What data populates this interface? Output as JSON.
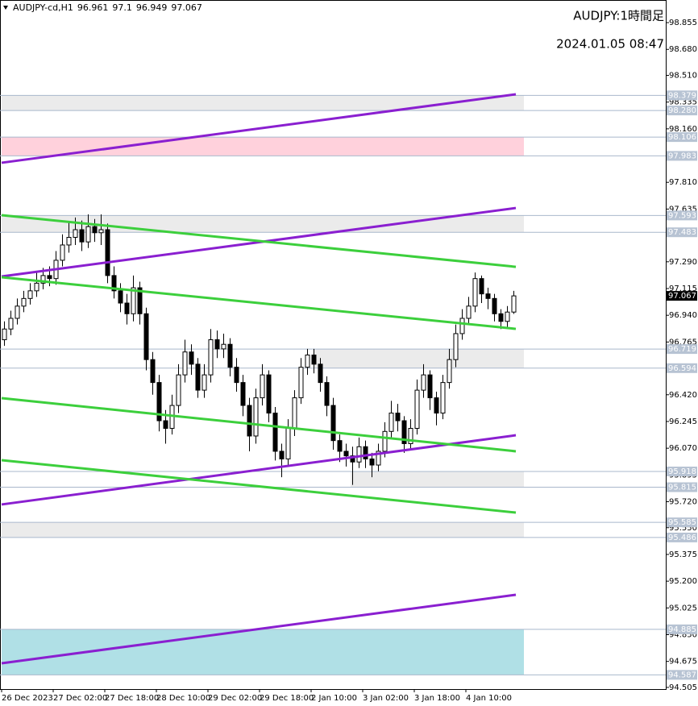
{
  "chart_data": {
    "type": "candlestick",
    "symbol": "AUDJPY-cd,H1",
    "title": "AUDJPY:1時間足",
    "subtitle": "2024.01.05 08:47",
    "up_color": "#ffffff",
    "down_color": "#000000",
    "categories": [
      "26 Dec 2023",
      null,
      null,
      null,
      null,
      null,
      null,
      null,
      "27 Dec 02:00",
      null,
      null,
      null,
      null,
      null,
      null,
      null,
      "27 Dec 18:00",
      null,
      null,
      null,
      null,
      null,
      null,
      null,
      "28 Dec 10:00",
      null,
      null,
      null,
      null,
      null,
      null,
      null,
      "29 Dec 02:00",
      null,
      null,
      null,
      null,
      null,
      null,
      null,
      "29 Dec 18:00",
      null,
      null,
      null,
      null,
      null,
      null,
      null,
      "2 Jan 10:00",
      null,
      null,
      null,
      null,
      null,
      null,
      null,
      "3 Jan 02:00",
      null,
      null,
      null,
      null,
      null,
      null,
      null,
      "3 Jan 18:00",
      null,
      null,
      null,
      null,
      null,
      null,
      null,
      "4 Jan 10:00",
      null,
      null,
      null,
      null,
      null,
      null,
      null
    ],
    "candles": [
      [
        96.78,
        96.9,
        96.74,
        96.85
      ],
      [
        96.85,
        96.97,
        96.81,
        96.92
      ],
      [
        96.92,
        97.05,
        96.88,
        97.0
      ],
      [
        97.0,
        97.1,
        96.96,
        97.05
      ],
      [
        97.05,
        97.15,
        97.01,
        97.1
      ],
      [
        97.1,
        97.22,
        97.06,
        97.15
      ],
      [
        97.15,
        97.25,
        97.11,
        97.2
      ],
      [
        97.2,
        97.26,
        97.13,
        97.18
      ],
      [
        97.18,
        97.36,
        97.14,
        97.3
      ],
      [
        97.3,
        97.47,
        97.26,
        97.4
      ],
      [
        97.4,
        97.55,
        97.35,
        97.45
      ],
      [
        97.45,
        97.58,
        97.4,
        97.5
      ],
      [
        97.5,
        97.56,
        97.36,
        97.42
      ],
      [
        97.42,
        97.6,
        97.38,
        97.52
      ],
      [
        97.52,
        97.57,
        97.42,
        97.48
      ],
      [
        97.48,
        97.6,
        97.4,
        97.5
      ],
      [
        97.5,
        97.54,
        97.15,
        97.2
      ],
      [
        97.2,
        97.26,
        97.05,
        97.1
      ],
      [
        97.1,
        97.15,
        96.96,
        97.02
      ],
      [
        97.02,
        97.08,
        96.88,
        96.95
      ],
      [
        96.95,
        97.2,
        96.9,
        97.12
      ],
      [
        97.12,
        97.16,
        96.88,
        96.95
      ],
      [
        96.95,
        96.99,
        96.58,
        96.65
      ],
      [
        96.65,
        96.7,
        96.42,
        96.5
      ],
      [
        96.5,
        96.55,
        96.18,
        96.25
      ],
      [
        96.25,
        96.32,
        96.1,
        96.2
      ],
      [
        96.2,
        96.42,
        96.16,
        96.35
      ],
      [
        96.35,
        96.62,
        96.3,
        96.55
      ],
      [
        96.55,
        96.78,
        96.5,
        96.7
      ],
      [
        96.7,
        96.75,
        96.55,
        96.62
      ],
      [
        96.62,
        96.66,
        96.4,
        96.45
      ],
      [
        96.45,
        96.62,
        96.4,
        96.55
      ],
      [
        96.55,
        96.85,
        96.5,
        96.78
      ],
      [
        96.78,
        96.84,
        96.66,
        96.72
      ],
      [
        96.72,
        96.82,
        96.66,
        96.75
      ],
      [
        96.75,
        96.79,
        96.54,
        96.6
      ],
      [
        96.6,
        96.66,
        96.44,
        96.5
      ],
      [
        96.5,
        96.55,
        96.28,
        96.35
      ],
      [
        96.35,
        96.4,
        96.05,
        96.15
      ],
      [
        96.15,
        96.46,
        96.1,
        96.4
      ],
      [
        96.4,
        96.62,
        96.35,
        96.55
      ],
      [
        96.55,
        96.58,
        96.24,
        96.3
      ],
      [
        96.3,
        96.34,
        95.99,
        96.05
      ],
      [
        96.05,
        96.1,
        95.88,
        96.0
      ],
      [
        96.0,
        96.26,
        95.96,
        96.2
      ],
      [
        96.2,
        96.45,
        96.15,
        96.4
      ],
      [
        96.4,
        96.66,
        96.36,
        96.6
      ],
      [
        96.6,
        96.72,
        96.55,
        96.68
      ],
      [
        96.68,
        96.72,
        96.56,
        96.62
      ],
      [
        96.62,
        96.66,
        96.44,
        96.5
      ],
      [
        96.5,
        96.54,
        96.28,
        96.35
      ],
      [
        96.35,
        96.4,
        96.06,
        96.12
      ],
      [
        96.12,
        96.16,
        95.98,
        96.05
      ],
      [
        96.05,
        96.1,
        95.95,
        96.02
      ],
      [
        96.02,
        96.08,
        95.83,
        95.98
      ],
      [
        95.98,
        96.14,
        95.94,
        96.08
      ],
      [
        96.08,
        96.12,
        95.94,
        96.0
      ],
      [
        96.0,
        96.04,
        95.88,
        95.96
      ],
      [
        95.96,
        96.1,
        95.92,
        96.05
      ],
      [
        96.05,
        96.24,
        96.01,
        96.18
      ],
      [
        96.18,
        96.38,
        96.14,
        96.3
      ],
      [
        96.3,
        96.36,
        96.18,
        96.25
      ],
      [
        96.25,
        96.28,
        96.04,
        96.1
      ],
      [
        96.1,
        96.26,
        96.06,
        96.2
      ],
      [
        96.2,
        96.52,
        96.16,
        96.45
      ],
      [
        96.45,
        96.62,
        96.4,
        96.55
      ],
      [
        96.55,
        96.58,
        96.32,
        96.4
      ],
      [
        96.4,
        96.44,
        96.22,
        96.3
      ],
      [
        96.3,
        96.55,
        96.26,
        96.5
      ],
      [
        96.5,
        96.72,
        96.46,
        96.65
      ],
      [
        96.65,
        96.88,
        96.6,
        96.82
      ],
      [
        96.82,
        96.98,
        96.78,
        96.92
      ],
      [
        96.92,
        97.06,
        96.88,
        97.0
      ],
      [
        97.0,
        97.22,
        96.96,
        97.18
      ],
      [
        97.18,
        97.2,
        97.02,
        97.08
      ],
      [
        97.08,
        97.12,
        96.98,
        97.05
      ],
      [
        97.05,
        97.08,
        96.9,
        96.95
      ],
      [
        96.95,
        96.98,
        96.85,
        96.9
      ],
      [
        96.9,
        97.0,
        96.86,
        96.961
      ],
      [
        96.961,
        97.1,
        96.949,
        97.067
      ]
    ],
    "ylim": [
      94.494,
      99.003
    ],
    "yticks": [
      98.855,
      {
        "value": 98.68,
        "label": "98.680"
      },
      {
        "value": 98.51,
        "label": "98.510"
      },
      98.335,
      {
        "value": 98.16,
        "label": "98.160"
      },
      {
        "value": 97.81,
        "label": "97.810"
      },
      97.635,
      {
        "value": 97.29,
        "label": "97.290"
      },
      97.115,
      {
        "value": 96.94,
        "label": "96.940"
      },
      96.765,
      {
        "value": 96.42,
        "label": "96.420"
      },
      96.245,
      {
        "value": 96.07,
        "label": "96.070"
      },
      95.895,
      {
        "value": 95.72,
        "label": "95.720"
      },
      {
        "value": 95.55,
        "label": "95.550"
      },
      95.375,
      {
        "value": 95.2,
        "label": "95.200"
      },
      95.025,
      {
        "value": 94.85,
        "label": "94.850"
      },
      94.675,
      94.505
    ],
    "zones": [
      {
        "top": 98.379,
        "bottom": 98.28,
        "bottom_label": "98.280",
        "color": "#ebebeb"
      },
      {
        "top": 98.106,
        "bottom": 97.983,
        "color": "#ffd1dc"
      },
      {
        "top": 97.593,
        "bottom": 97.483,
        "color": "#ebebeb"
      },
      {
        "top": 96.719,
        "bottom": 96.594,
        "color": "#ebebeb"
      },
      {
        "top": 95.918,
        "bottom": 95.815,
        "color": "#ebebeb"
      },
      {
        "top": 95.585,
        "bottom": 95.486,
        "color": "#ebebeb"
      },
      {
        "top": 94.885,
        "bottom": 94.587,
        "color": "#b0e0e6"
      }
    ],
    "trendlines": [
      {
        "start": 97.938,
        "end": 98.386,
        "color": "#8a1fd0"
      },
      {
        "start": 97.194,
        "end": 97.642,
        "color": "#8a1fd0"
      },
      {
        "start": 95.702,
        "end": 96.155,
        "color": "#8a1fd0"
      },
      {
        "start": 94.663,
        "end": 95.111,
        "color": "#8a1fd0"
      },
      {
        "start": 97.595,
        "end": 97.257,
        "color": "#3ccf3c"
      },
      {
        "start": 97.189,
        "end": 96.851,
        "color": "#3ccf3c"
      },
      {
        "start": 96.398,
        "end": 96.05,
        "color": "#3ccf3c"
      },
      {
        "start": 95.992,
        "end": 95.649,
        "color": "#3ccf3c"
      }
    ]
  }
}
